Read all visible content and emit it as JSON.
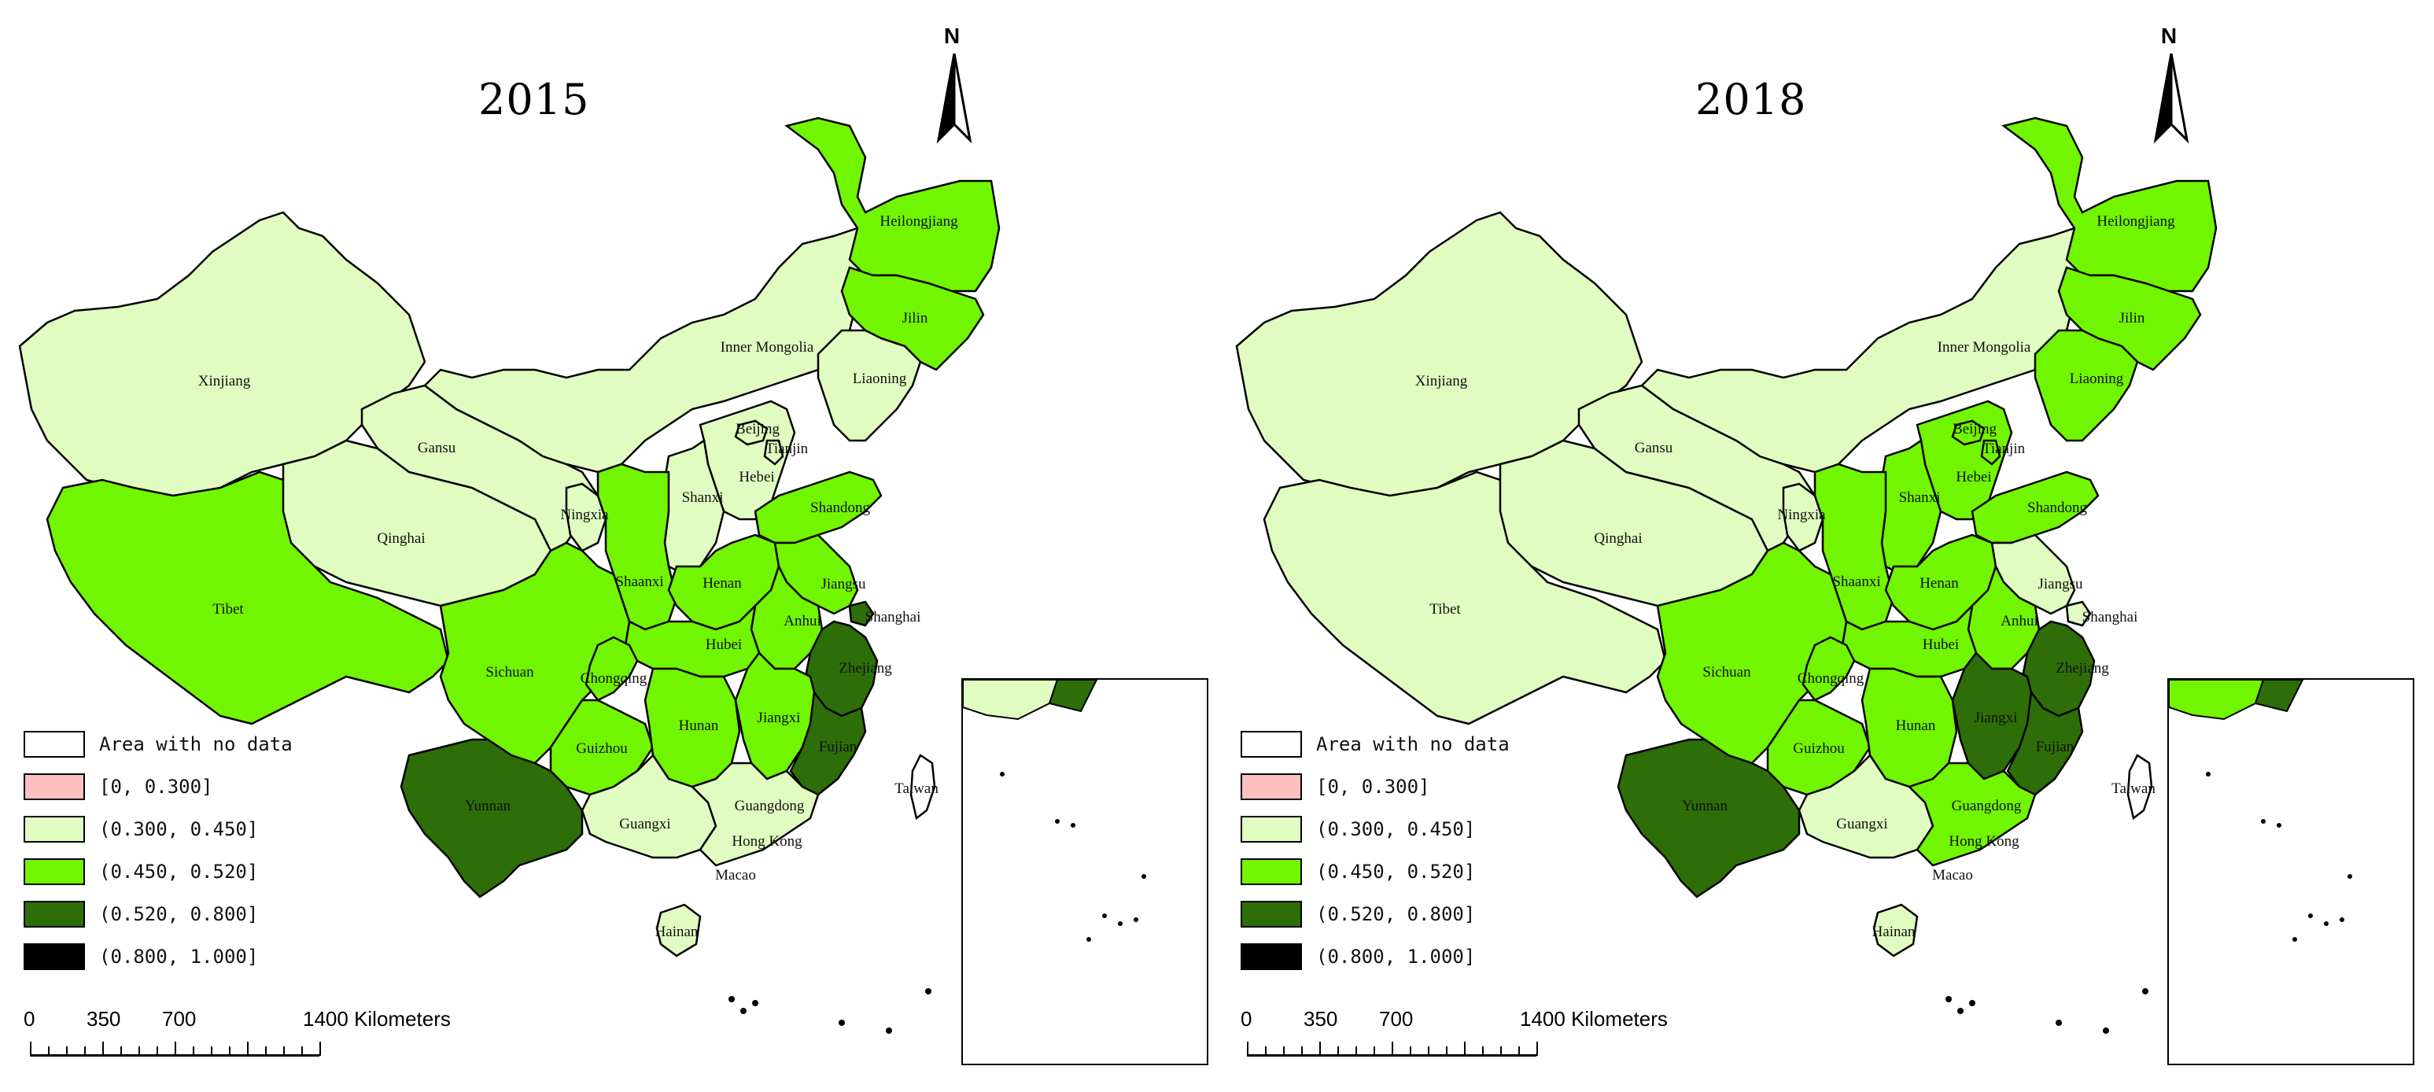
{
  "colors": {
    "no_data": "#ffffff",
    "class_0_030": "#ffc0c0",
    "class_030_045": "#e0fcc0",
    "class_045_052": "#72f500",
    "class_052_080": "#2e6e08",
    "class_080_100": "#000000",
    "border": "#000000"
  },
  "legend": [
    {
      "label": "Area with no data",
      "color_key": "no_data"
    },
    {
      "label": "[0, 0.300]",
      "color_key": "class_0_030"
    },
    {
      "label": "(0.300, 0.450]",
      "color_key": "class_030_045"
    },
    {
      "label": "(0.450, 0.520]",
      "color_key": "class_045_052"
    },
    {
      "label": "(0.520, 0.800]",
      "color_key": "class_052_080"
    },
    {
      "label": "(0.800, 1.000]",
      "color_key": "class_080_100"
    }
  ],
  "north_label": "N",
  "scale": {
    "ticks": [
      "0",
      "350",
      "700",
      "1400 Kilometers"
    ]
  },
  "maps": [
    {
      "year": "2015",
      "class_by_region": {
        "Xinjiang": "class_030_045",
        "Tibet": "class_045_052",
        "Qinghai": "class_030_045",
        "Gansu": "class_030_045",
        "Inner Mongolia": "class_030_045",
        "Heilongjiang": "class_045_052",
        "Jilin": "class_045_052",
        "Liaoning": "class_030_045",
        "Hebei": "class_030_045",
        "Shanxi": "class_030_045",
        "Ningxia": "class_030_045",
        "Shaanxi": "class_045_052",
        "Henan": "class_045_052",
        "Shandong": "class_045_052",
        "Jiangsu": "class_045_052",
        "Anhui": "class_045_052",
        "Hubei": "class_045_052",
        "Sichuan": "class_045_052",
        "Chongqing": "class_045_052",
        "Guizhou": "class_045_052",
        "Hunan": "class_045_052",
        "Jiangxi": "class_045_052",
        "Zhejiang": "class_052_080",
        "Fujian": "class_052_080",
        "Yunnan": "class_052_080",
        "Guangxi": "class_030_045",
        "Guangdong": "class_030_045",
        "Hainan": "class_030_045",
        "Beijing": "class_030_045",
        "Tianjin": "class_030_045",
        "Shanghai": "class_052_080"
      }
    },
    {
      "year": "2018",
      "class_by_region": {
        "Xinjiang": "class_030_045",
        "Tibet": "class_030_045",
        "Qinghai": "class_030_045",
        "Gansu": "class_030_045",
        "Inner Mongolia": "class_030_045",
        "Heilongjiang": "class_045_052",
        "Jilin": "class_045_052",
        "Liaoning": "class_045_052",
        "Hebei": "class_045_052",
        "Shanxi": "class_045_052",
        "Ningxia": "class_030_045",
        "Shaanxi": "class_045_052",
        "Henan": "class_045_052",
        "Shandong": "class_045_052",
        "Jiangsu": "class_030_045",
        "Anhui": "class_045_052",
        "Hubei": "class_045_052",
        "Sichuan": "class_045_052",
        "Chongqing": "class_045_052",
        "Guizhou": "class_045_052",
        "Hunan": "class_045_052",
        "Jiangxi": "class_052_080",
        "Zhejiang": "class_052_080",
        "Fujian": "class_052_080",
        "Yunnan": "class_052_080",
        "Guangxi": "class_030_045",
        "Guangdong": "class_045_052",
        "Hainan": "class_030_045",
        "Beijing": "class_045_052",
        "Tianjin": "class_045_052",
        "Shanghai": "class_030_045"
      }
    }
  ],
  "region_labels": [
    {
      "region": "Xinjiang",
      "text": "Xinjiang"
    },
    {
      "region": "Tibet",
      "text": "Tibet"
    },
    {
      "region": "Qinghai",
      "text": "Qinghai"
    },
    {
      "region": "Gansu",
      "text": "Gansu"
    },
    {
      "region": "Inner Mongolia",
      "text": "Inner Mongolia"
    },
    {
      "region": "Heilongjiang",
      "text": "Heilongjiang"
    },
    {
      "region": "Jilin",
      "text": "Jilin"
    },
    {
      "region": "Liaoning",
      "text": "Liaoning"
    },
    {
      "region": "Beijing",
      "text": "Beijing"
    },
    {
      "region": "Tianjin",
      "text": "Tianjin"
    },
    {
      "region": "Hebei",
      "text": "Hebei"
    },
    {
      "region": "Shanxi",
      "text": "Shanxi"
    },
    {
      "region": "Ningxia",
      "text": "Ningxia"
    },
    {
      "region": "Shandong",
      "text": "Shandong"
    },
    {
      "region": "Shaanxi",
      "text": "Shaanxi"
    },
    {
      "region": "Henan",
      "text": "Henan"
    },
    {
      "region": "Jiangsu",
      "text": "Jiangsu"
    },
    {
      "region": "Shanghai",
      "text": "Shanghai"
    },
    {
      "region": "Anhui",
      "text": "Anhui"
    },
    {
      "region": "Sichuan",
      "text": "Sichuan"
    },
    {
      "region": "Hubei",
      "text": "Hubei"
    },
    {
      "region": "Chongqing",
      "text": "Chongqing"
    },
    {
      "region": "Zhejiang",
      "text": "Zhejiang"
    },
    {
      "region": "Guizhou",
      "text": "Guizhou"
    },
    {
      "region": "Hunan",
      "text": "Hunan"
    },
    {
      "region": "Jiangxi",
      "text": "Jiangxi"
    },
    {
      "region": "Fujian",
      "text": "Fujian"
    },
    {
      "region": "Yunnan",
      "text": "Yunnan"
    },
    {
      "region": "Taiwan",
      "text": "Taiwan"
    },
    {
      "region": "Guangxi",
      "text": "Guangxi"
    },
    {
      "region": "Guangdong",
      "text": "Guangdong"
    },
    {
      "region": "Hong Kong",
      "text": "Hong Kong"
    },
    {
      "region": "Macao",
      "text": "Macao"
    },
    {
      "region": "Hainan",
      "text": "Hainan"
    }
  ]
}
